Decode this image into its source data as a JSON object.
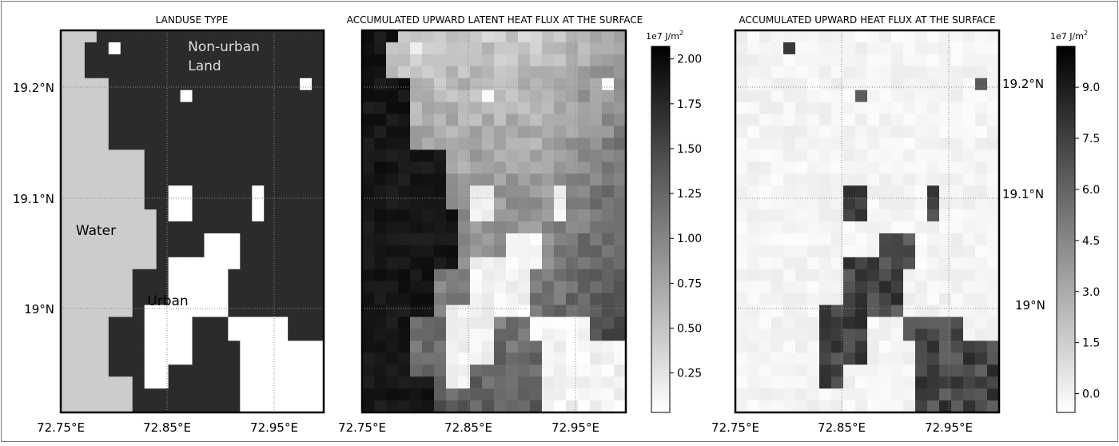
{
  "figure": {
    "panels": [
      {
        "title": "LANDUSE TYPE",
        "x_ticks": [
          "72.75°E",
          "72.85°E",
          "72.95°E"
        ],
        "y_ticks": [
          "19.2°N",
          "19.1°N",
          "19°N"
        ],
        "labels": [
          "Non-urban",
          "Land",
          "Water",
          "Urban"
        ]
      },
      {
        "title": "ACCUMULATED UPWARD LATENT HEAT FLUX AT THE SURFACE",
        "x_ticks": [
          "72.75°E",
          "72.85°E",
          "72.95°E"
        ],
        "colorbar": {
          "unit_prefix": "1e7 J/m",
          "unit_exp": "2",
          "ticks": [
            "0.25",
            "0.50",
            "0.75",
            "1.00",
            "1.25",
            "1.50",
            "1.75",
            "2.00"
          ]
        }
      },
      {
        "title": "ACCUMULATED UPWARD HEAT FLUX AT THE SURFACE",
        "x_ticks": [
          "72.75°E",
          "72.85°E",
          "72.95°E"
        ],
        "y_ticks": [
          "19.2°N",
          "19.1°N",
          "19°N"
        ],
        "colorbar": {
          "unit_prefix": "1e7 J/m",
          "unit_exp": "2",
          "ticks": [
            "0.0",
            "1.5",
            "3.0",
            "4.5",
            "6.0",
            "7.5",
            "9.0"
          ]
        }
      }
    ],
    "colors": {
      "urban": "#ffffff",
      "land": "#2b2b2b",
      "water": "#cccccc",
      "frame": "#000000"
    }
  },
  "map_data": {
    "projection": "lat-lon",
    "lon_range": [
      72.75,
      72.97
    ],
    "lat_range": [
      18.92,
      19.25
    ],
    "grid": {
      "cols": 22,
      "rows": 32
    }
  }
}
